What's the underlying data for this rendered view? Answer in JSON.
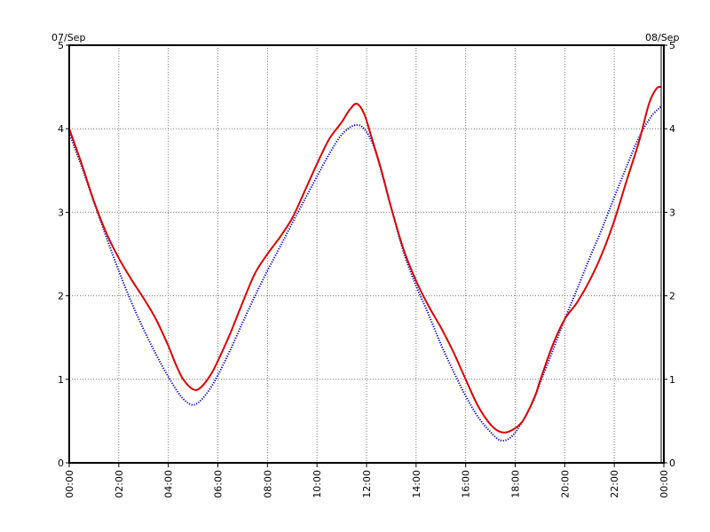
{
  "chart_data": {
    "type": "line",
    "title": "",
    "xlabel": "",
    "ylabel": "",
    "date_left": "07/Sep",
    "date_right": "08/Sep",
    "xlim": [
      0,
      24
    ],
    "ylim": [
      0,
      5
    ],
    "grid": true,
    "x_ticks": [
      {
        "value": 0,
        "label": "00:00"
      },
      {
        "value": 2,
        "label": "02:00"
      },
      {
        "value": 4,
        "label": "04:00"
      },
      {
        "value": 6,
        "label": "06:00"
      },
      {
        "value": 8,
        "label": "08:00"
      },
      {
        "value": 10,
        "label": "10:00"
      },
      {
        "value": 12,
        "label": "12:00"
      },
      {
        "value": 14,
        "label": "14:00"
      },
      {
        "value": 16,
        "label": "16:00"
      },
      {
        "value": 18,
        "label": "18:00"
      },
      {
        "value": 20,
        "label": "20:00"
      },
      {
        "value": 22,
        "label": "22:00"
      },
      {
        "value": 24,
        "label": "00:00"
      }
    ],
    "y_ticks": [
      {
        "value": 0,
        "label": "0"
      },
      {
        "value": 1,
        "label": "1"
      },
      {
        "value": 2,
        "label": "2"
      },
      {
        "value": 3,
        "label": "3"
      },
      {
        "value": 4,
        "label": "4"
      },
      {
        "value": 5,
        "label": "5"
      }
    ],
    "series": [
      {
        "color": "#0000cc",
        "style": "dotted",
        "points": [
          [
            0.0,
            3.95
          ],
          [
            0.5,
            3.55
          ],
          [
            1.0,
            3.12
          ],
          [
            1.5,
            2.7
          ],
          [
            2.0,
            2.3
          ],
          [
            2.5,
            1.93
          ],
          [
            3.0,
            1.6
          ],
          [
            3.5,
            1.3
          ],
          [
            4.0,
            1.03
          ],
          [
            4.5,
            0.8
          ],
          [
            4.9,
            0.7
          ],
          [
            5.2,
            0.72
          ],
          [
            5.6,
            0.85
          ],
          [
            6.0,
            1.05
          ],
          [
            6.5,
            1.35
          ],
          [
            7.0,
            1.68
          ],
          [
            7.5,
            2.0
          ],
          [
            8.0,
            2.3
          ],
          [
            8.5,
            2.58
          ],
          [
            9.0,
            2.87
          ],
          [
            9.5,
            3.15
          ],
          [
            10.0,
            3.43
          ],
          [
            10.5,
            3.7
          ],
          [
            11.0,
            3.93
          ],
          [
            11.5,
            4.04
          ],
          [
            11.9,
            4.0
          ],
          [
            12.3,
            3.78
          ],
          [
            12.7,
            3.38
          ],
          [
            13.0,
            3.05
          ],
          [
            13.5,
            2.52
          ],
          [
            14.0,
            2.12
          ],
          [
            14.5,
            1.78
          ],
          [
            15.0,
            1.42
          ],
          [
            15.5,
            1.1
          ],
          [
            16.0,
            0.8
          ],
          [
            16.5,
            0.55
          ],
          [
            17.0,
            0.37
          ],
          [
            17.4,
            0.27
          ],
          [
            17.8,
            0.3
          ],
          [
            18.2,
            0.45
          ],
          [
            18.7,
            0.72
          ],
          [
            19.0,
            0.95
          ],
          [
            19.5,
            1.33
          ],
          [
            20.0,
            1.72
          ],
          [
            20.5,
            2.08
          ],
          [
            21.0,
            2.45
          ],
          [
            21.5,
            2.8
          ],
          [
            22.0,
            3.18
          ],
          [
            22.5,
            3.55
          ],
          [
            23.0,
            3.9
          ],
          [
            23.5,
            4.15
          ],
          [
            23.9,
            4.27
          ]
        ]
      },
      {
        "color": "#dd0000",
        "style": "solid",
        "points": [
          [
            0.0,
            4.0
          ],
          [
            0.5,
            3.58
          ],
          [
            1.0,
            3.13
          ],
          [
            1.5,
            2.75
          ],
          [
            2.0,
            2.45
          ],
          [
            2.5,
            2.2
          ],
          [
            3.0,
            1.97
          ],
          [
            3.5,
            1.72
          ],
          [
            4.0,
            1.4
          ],
          [
            4.3,
            1.18
          ],
          [
            4.6,
            1.0
          ],
          [
            5.0,
            0.88
          ],
          [
            5.3,
            0.9
          ],
          [
            5.7,
            1.05
          ],
          [
            6.0,
            1.22
          ],
          [
            6.5,
            1.55
          ],
          [
            7.0,
            1.92
          ],
          [
            7.5,
            2.27
          ],
          [
            8.0,
            2.5
          ],
          [
            8.5,
            2.7
          ],
          [
            9.0,
            2.93
          ],
          [
            9.5,
            3.25
          ],
          [
            10.0,
            3.58
          ],
          [
            10.5,
            3.88
          ],
          [
            11.0,
            4.08
          ],
          [
            11.3,
            4.22
          ],
          [
            11.6,
            4.3
          ],
          [
            11.9,
            4.18
          ],
          [
            12.2,
            3.9
          ],
          [
            12.6,
            3.5
          ],
          [
            13.0,
            3.05
          ],
          [
            13.5,
            2.55
          ],
          [
            14.0,
            2.18
          ],
          [
            14.5,
            1.88
          ],
          [
            15.0,
            1.62
          ],
          [
            15.5,
            1.33
          ],
          [
            16.0,
            1.0
          ],
          [
            16.5,
            0.68
          ],
          [
            17.0,
            0.46
          ],
          [
            17.4,
            0.37
          ],
          [
            17.8,
            0.38
          ],
          [
            18.3,
            0.5
          ],
          [
            18.8,
            0.8
          ],
          [
            19.0,
            0.98
          ],
          [
            19.5,
            1.4
          ],
          [
            20.0,
            1.72
          ],
          [
            20.5,
            1.92
          ],
          [
            21.0,
            2.18
          ],
          [
            21.5,
            2.5
          ],
          [
            22.0,
            2.9
          ],
          [
            22.5,
            3.38
          ],
          [
            23.0,
            3.85
          ],
          [
            23.4,
            4.3
          ],
          [
            23.7,
            4.48
          ],
          [
            23.9,
            4.5
          ]
        ]
      }
    ]
  }
}
